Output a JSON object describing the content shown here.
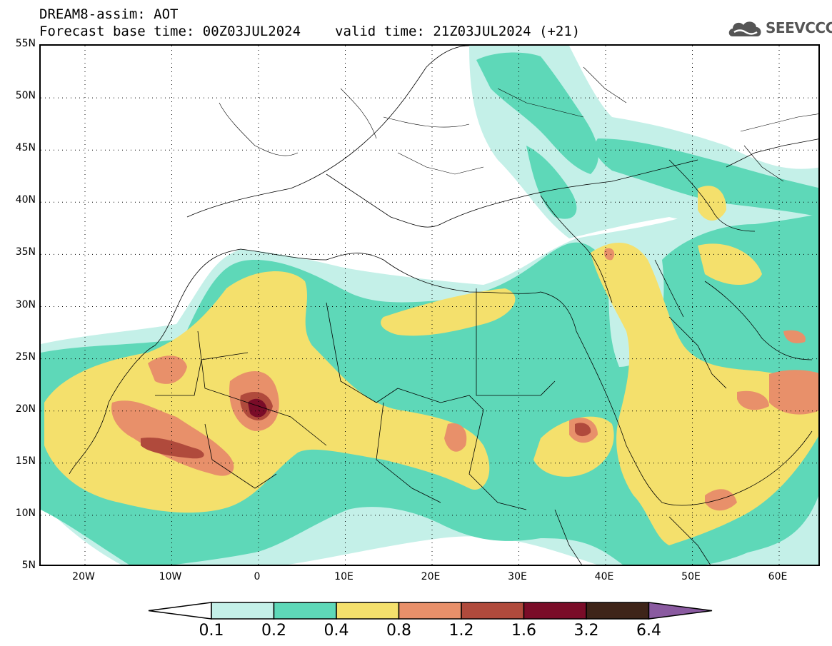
{
  "title": {
    "line1": "DREAM8-assim: AOT",
    "line2_base": "Forecast base time: 00Z03JUL2024",
    "line2_valid": "valid time: 21Z03JUL2024 (+21)"
  },
  "logo": {
    "text": "SEEVCCC",
    "icon": "cloud-logo-icon"
  },
  "map": {
    "lat_labels": [
      "55N",
      "50N",
      "45N",
      "40N",
      "35N",
      "30N",
      "25N",
      "20N",
      "15N",
      "10N",
      "5N"
    ],
    "lon_labels": [
      "20W",
      "10W",
      "0",
      "10E",
      "20E",
      "30E",
      "40E",
      "50E",
      "60E"
    ]
  },
  "colorbar": {
    "labels": [
      "0.1",
      "0.2",
      "0.4",
      "0.8",
      "1.2",
      "1.6",
      "3.2",
      "6.4"
    ],
    "colors": [
      "#c4f0e8",
      "#5ed8b8",
      "#f4e06c",
      "#e8906a",
      "#b04a3c",
      "#7a0c28",
      "#3e2418",
      "#8a5aa0"
    ],
    "under_color": "#ffffff"
  }
}
